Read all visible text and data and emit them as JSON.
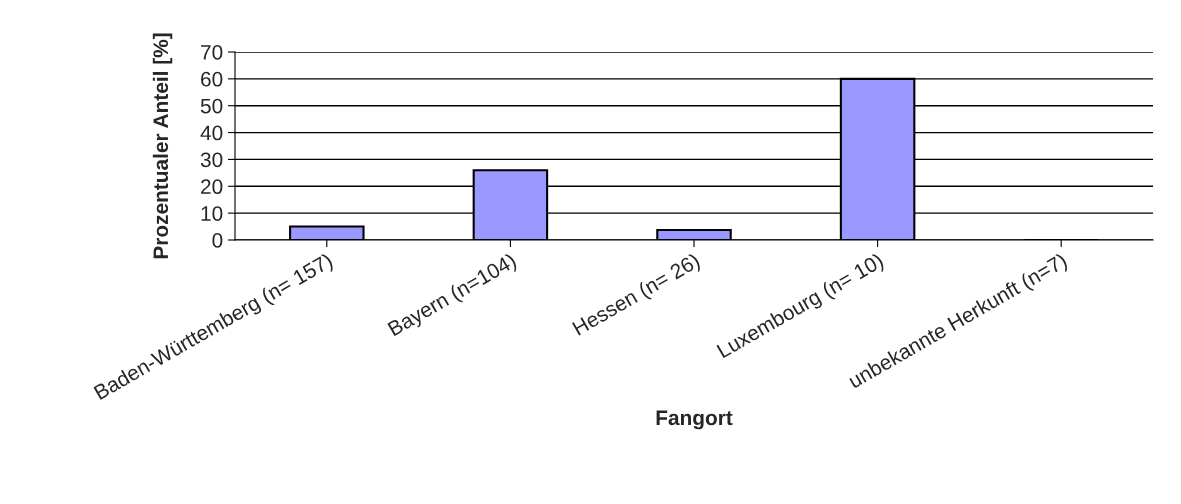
{
  "chart_data": {
    "type": "bar",
    "categories": [
      "Baden-Württemberg (n= 157)",
      "Bayern (n=104)",
      "Hessen (n= 26)",
      "Luxembourg (n= 10)",
      "unbekannte Herkunft (n=7)"
    ],
    "values": [
      5,
      26,
      3.7,
      60,
      0
    ],
    "color": "#9999ff",
    "xlabel": "Fangort",
    "ylabel": "Prozentualer Anteil [%]",
    "ylim": [
      0,
      70
    ],
    "yticks": [
      0,
      10,
      20,
      30,
      40,
      50,
      60,
      70
    ],
    "grid": "y",
    "legend": false
  }
}
